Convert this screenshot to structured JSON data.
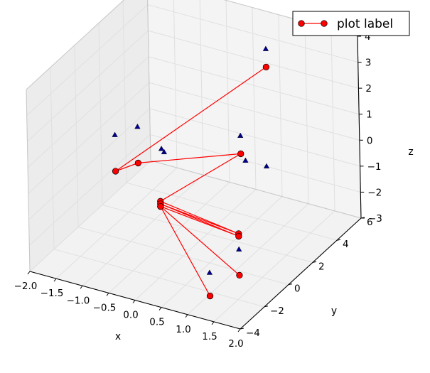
{
  "chart_data": {
    "type": "scatter",
    "projection": "3d",
    "grid": true,
    "legend_placement": "top-right",
    "xlabel": "x",
    "ylabel": "y",
    "zlabel": "z",
    "xlim": [
      -2.0,
      2.0
    ],
    "ylim": [
      -4,
      6
    ],
    "zlim": [
      -3,
      4
    ],
    "x_ticks": [
      "−2.0",
      "−1.5",
      "−1.0",
      "−0.5",
      "0.0",
      "0.5",
      "1.0",
      "1.5",
      "2.0"
    ],
    "y_ticks": [
      "−4",
      "−2",
      "0",
      "2",
      "4",
      "6"
    ],
    "z_ticks": [
      "−3",
      "−2",
      "−1",
      "0",
      "1",
      "2",
      "3",
      "4"
    ],
    "series": [
      {
        "name": "plot label",
        "kind": "line-with-markers",
        "color": "#ff0000",
        "points": [
          {
            "x": 0.9,
            "y": 3.2,
            "z": 3.4
          },
          {
            "x": -1.5,
            "y": 1.0,
            "z": -1.0
          },
          {
            "x": -1.3,
            "y": 2.0,
            "z": -1.0
          },
          {
            "x": 0.9,
            "y": 1.0,
            "z": 1.0
          },
          {
            "x": -0.7,
            "y": 1.2,
            "z": -1.8
          },
          {
            "x": 1.3,
            "y": -1.0,
            "z": -1.0
          },
          {
            "x": -0.7,
            "y": 1.2,
            "z": -1.9
          },
          {
            "x": 1.3,
            "y": -1.0,
            "z": -1.1
          },
          {
            "x": -0.7,
            "y": 1.2,
            "z": -2.0
          },
          {
            "x": 1.3,
            "y": -1.0,
            "z": -2.6
          },
          {
            "x": -0.7,
            "y": 1.2,
            "z": -2.0
          },
          {
            "x": 1.2,
            "y": -3.0,
            "z": -2.6
          }
        ]
      },
      {
        "name": "",
        "kind": "scatter-triangles",
        "color": "#00008b",
        "points": [
          {
            "x": -1.5,
            "y": 1.0,
            "z": 0.4
          },
          {
            "x": -1.3,
            "y": 2.0,
            "z": 0.4
          },
          {
            "x": -0.85,
            "y": 2.0,
            "z": -0.2
          },
          {
            "x": -0.8,
            "y": 2.0,
            "z": -0.3
          },
          {
            "x": 0.9,
            "y": 3.2,
            "z": 4.1
          },
          {
            "x": 0.9,
            "y": 1.0,
            "z": 1.7
          },
          {
            "x": 0.4,
            "y": 3.5,
            "z": -0.6
          },
          {
            "x": 0.8,
            "y": 3.5,
            "z": -0.6
          },
          {
            "x": 1.3,
            "y": -1.0,
            "z": -1.6
          },
          {
            "x": 1.2,
            "y": -3.0,
            "z": -1.7
          }
        ]
      }
    ]
  }
}
